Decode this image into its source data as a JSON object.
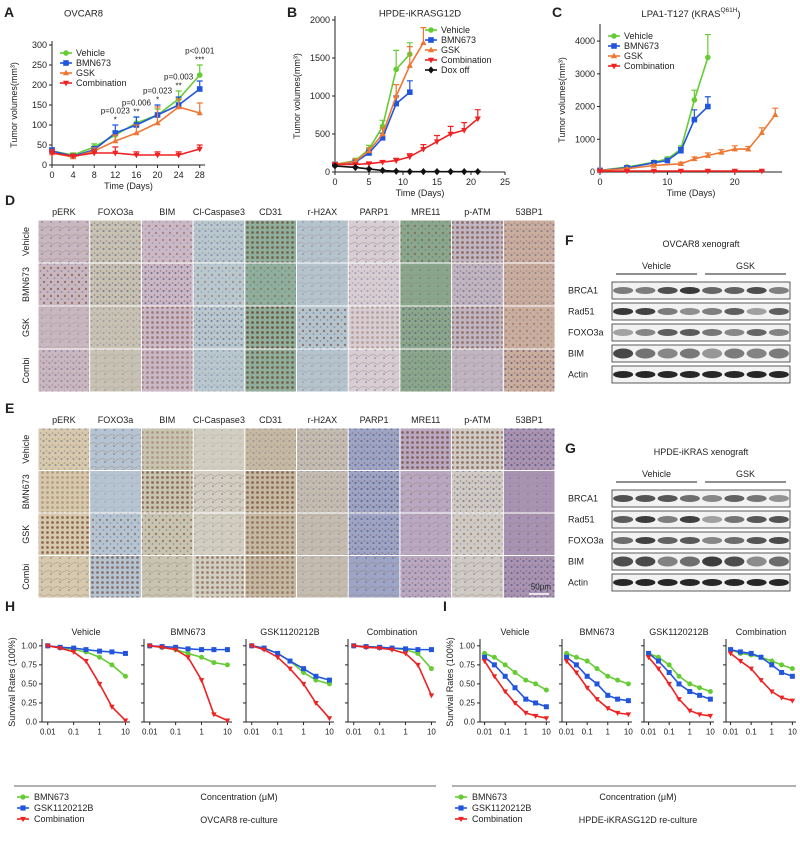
{
  "chart_data": [
    {
      "type": "line",
      "label": "A",
      "title": "OVCAR8",
      "xlabel": "Time (Days)",
      "ylabel": "Tumor volumes(mm³)",
      "x": [
        0,
        4,
        8,
        12,
        16,
        20,
        24,
        28
      ],
      "xlim": [
        0,
        29
      ],
      "xticks": [
        0,
        4,
        8,
        12,
        16,
        20,
        24,
        28
      ],
      "ylim": [
        0,
        300
      ],
      "yticks": [
        0,
        50,
        100,
        150,
        200,
        250,
        300
      ],
      "legend": "upper left",
      "series": [
        {
          "name": "Vehicle",
          "color": "#66cc33",
          "marker": "circle",
          "values": [
            35,
            25,
            45,
            75,
            105,
            125,
            165,
            225
          ],
          "errors": [
            8,
            5,
            8,
            10,
            15,
            15,
            20,
            25
          ]
        },
        {
          "name": "BMN673",
          "color": "#2255dd",
          "marker": "square",
          "values": [
            35,
            22,
            38,
            80,
            100,
            125,
            150,
            190
          ],
          "errors": [
            8,
            5,
            8,
            20,
            20,
            25,
            20,
            20
          ]
        },
        {
          "name": "GSK",
          "color": "#ee7733",
          "marker": "triangle-up",
          "values": [
            30,
            20,
            35,
            60,
            80,
            105,
            145,
            130
          ],
          "errors": [
            8,
            5,
            8,
            15,
            20,
            40,
            20,
            25
          ]
        },
        {
          "name": "Combination",
          "color": "#ee2222",
          "marker": "triangle-down",
          "values": [
            30,
            22,
            30,
            30,
            25,
            25,
            25,
            40
          ],
          "errors": [
            8,
            5,
            8,
            15,
            8,
            8,
            8,
            10
          ]
        }
      ],
      "annotations": [
        {
          "text": "p=0.023",
          "stars": "*"
        },
        {
          "text": "p=0.006",
          "stars": "**"
        },
        {
          "text": "p=0.023",
          "stars": "*"
        },
        {
          "text": "p=0.003",
          "stars": "**"
        },
        {
          "text": "p<0.001",
          "stars": "***"
        }
      ]
    },
    {
      "type": "line",
      "label": "B",
      "title": "HPDE-iKRASG12D",
      "xlabel": "Time (Days)",
      "ylabel": "Tumor volumes(mm³)",
      "xlim": [
        0,
        25
      ],
      "xticks": [
        0,
        5,
        10,
        15,
        20,
        25
      ],
      "ylim": [
        0,
        2000
      ],
      "yticks": [
        0,
        500,
        1000,
        1500,
        2000
      ],
      "legend": "upper right",
      "series": [
        {
          "name": "Vehicle",
          "color": "#66cc33",
          "marker": "circle",
          "x": [
            0,
            3,
            5,
            7,
            9,
            11
          ],
          "values": [
            100,
            150,
            300,
            600,
            1350,
            1550
          ],
          "errors": [
            20,
            30,
            50,
            80,
            250,
            150
          ]
        },
        {
          "name": "BMN673",
          "color": "#2255dd",
          "marker": "square",
          "x": [
            0,
            3,
            5,
            7,
            9,
            11
          ],
          "values": [
            100,
            130,
            250,
            450,
            900,
            1050
          ],
          "errors": [
            20,
            30,
            40,
            60,
            100,
            150
          ]
        },
        {
          "name": "GSK",
          "color": "#ee7733",
          "marker": "triangle-up",
          "x": [
            0,
            3,
            5,
            7,
            9,
            11,
            13
          ],
          "values": [
            100,
            140,
            280,
            500,
            1000,
            1400,
            1700
          ],
          "errors": [
            20,
            30,
            40,
            80,
            150,
            250,
            200
          ]
        },
        {
          "name": "Combination",
          "color": "#ee2222",
          "marker": "triangle-down",
          "x": [
            0,
            3,
            5,
            7,
            9,
            11,
            13,
            15,
            17,
            19,
            21
          ],
          "values": [
            100,
            100,
            110,
            130,
            150,
            200,
            300,
            400,
            500,
            550,
            700
          ],
          "errors": [
            10,
            10,
            15,
            20,
            30,
            40,
            60,
            80,
            100,
            100,
            120
          ]
        },
        {
          "name": "Dox off",
          "color": "#111111",
          "marker": "diamond",
          "x": [
            0,
            3,
            5,
            7,
            9,
            11,
            13,
            15,
            17,
            19,
            21
          ],
          "values": [
            80,
            60,
            40,
            20,
            10,
            5,
            5,
            5,
            5,
            5,
            5
          ],
          "errors": [
            10,
            10,
            10,
            5,
            5,
            5,
            5,
            5,
            5,
            5,
            5
          ]
        }
      ]
    },
    {
      "type": "line",
      "label": "C",
      "title": "LPA1-T127 (KRAS",
      "title_sup": "Q61H",
      "title_end": ")",
      "xlabel": "Time (Days)",
      "ylabel": "Tumor volumes(mm³)",
      "xlim": [
        0,
        27
      ],
      "xticks": [
        0,
        10,
        20
      ],
      "ylim": [
        0,
        4400
      ],
      "yticks": [
        0,
        1000,
        2000,
        3000,
        4000
      ],
      "legend": "upper left",
      "series": [
        {
          "name": "Vehicle",
          "color": "#66cc33",
          "marker": "circle",
          "x": [
            0,
            4,
            8,
            10,
            12,
            14,
            16
          ],
          "values": [
            50,
            150,
            300,
            400,
            700,
            2200,
            3500
          ],
          "errors": [
            20,
            30,
            50,
            60,
            100,
            300,
            700
          ]
        },
        {
          "name": "BMN673",
          "color": "#2255dd",
          "marker": "square",
          "x": [
            0,
            4,
            8,
            10,
            12,
            14,
            16
          ],
          "values": [
            50,
            130,
            280,
            350,
            650,
            1600,
            2000
          ],
          "errors": [
            20,
            30,
            40,
            50,
            100,
            300,
            300
          ]
        },
        {
          "name": "GSK",
          "color": "#ee7733",
          "marker": "triangle-up",
          "x": [
            0,
            4,
            8,
            12,
            14,
            16,
            18,
            20,
            22,
            24,
            26
          ],
          "values": [
            50,
            100,
            200,
            250,
            400,
            500,
            600,
            700,
            700,
            1200,
            1750
          ],
          "errors": [
            10,
            20,
            30,
            50,
            60,
            80,
            80,
            100,
            80,
            150,
            200
          ]
        },
        {
          "name": "Combination",
          "color": "#ee2222",
          "marker": "triangle-down",
          "x": [
            0,
            4,
            8,
            12,
            16,
            20,
            24
          ],
          "values": [
            30,
            30,
            30,
            30,
            30,
            30,
            30
          ],
          "errors": [
            10,
            10,
            10,
            10,
            10,
            10,
            10
          ]
        }
      ]
    },
    {
      "type": "dose_panel",
      "label": "H",
      "ylabel": "Survival Rates (100%)",
      "xlabel": "Concentration (μM)",
      "caption": "OVCAR8 re-culture",
      "log_x": true,
      "x": [
        0.01,
        0.03,
        0.1,
        0.3,
        1,
        3,
        10
      ],
      "xlim": [
        0.006,
        15
      ],
      "xticks": [
        0.01,
        0.1,
        1,
        10
      ],
      "ylim": [
        0,
        1.05
      ],
      "yticks": [
        {
          "value": 0,
          "label": "0.0"
        },
        {
          "value": 0.25,
          "label": "0.25"
        },
        {
          "value": 0.5,
          "label": "0.50"
        },
        {
          "value": 0.75,
          "label": "0.75"
        },
        {
          "value": 1,
          "label": "1.00"
        }
      ],
      "series": [
        {
          "name": "BMN673",
          "color": "#66cc33",
          "marker": "circle"
        },
        {
          "name": "GSK1120212B",
          "color": "#2255dd",
          "marker": "square"
        },
        {
          "name": "Combination",
          "color": "#ee2222",
          "marker": "triangle-down"
        }
      ],
      "subplots": [
        {
          "title": "Vehicle",
          "values": [
            [
              1,
              0.98,
              0.95,
              0.92,
              0.85,
              0.75,
              0.6
            ],
            [
              1,
              0.98,
              0.97,
              0.95,
              0.93,
              0.92,
              0.9
            ],
            [
              1,
              0.97,
              0.92,
              0.8,
              0.5,
              0.2,
              0.02
            ]
          ]
        },
        {
          "title": "BMN673",
          "values": [
            [
              1,
              0.98,
              0.95,
              0.9,
              0.85,
              0.78,
              0.75
            ],
            [
              1,
              0.99,
              0.98,
              0.96,
              0.95,
              0.95,
              0.95
            ],
            [
              1,
              0.98,
              0.95,
              0.85,
              0.55,
              0.1,
              0.02
            ]
          ]
        },
        {
          "title": "GSK1120212B",
          "values": [
            [
              1,
              0.97,
              0.9,
              0.8,
              0.65,
              0.55,
              0.5
            ],
            [
              1,
              0.97,
              0.9,
              0.8,
              0.7,
              0.6,
              0.55
            ],
            [
              1,
              0.95,
              0.85,
              0.7,
              0.5,
              0.25,
              0.05
            ]
          ]
        },
        {
          "title": "Combination",
          "values": [
            [
              1,
              0.99,
              0.98,
              0.97,
              0.95,
              0.9,
              0.7
            ],
            [
              1,
              0.99,
              0.98,
              0.97,
              0.96,
              0.95,
              0.95
            ],
            [
              1,
              0.98,
              0.97,
              0.95,
              0.9,
              0.75,
              0.35
            ]
          ]
        }
      ]
    },
    {
      "type": "dose_panel",
      "label": "I",
      "ylabel": "Survival Rates (100%)",
      "xlabel": "Concentration (μM)",
      "caption": "HPDE-iKRASG12D re-culture",
      "log_x": true,
      "x": [
        0.01,
        0.03,
        0.1,
        0.3,
        1,
        3,
        10
      ],
      "xlim": [
        0.006,
        15
      ],
      "xticks": [
        0.01,
        0.1,
        1,
        10
      ],
      "ylim": [
        0,
        1.05
      ],
      "yticks": [
        {
          "value": 0,
          "label": "0.0"
        },
        {
          "value": 0.25,
          "label": "0.25"
        },
        {
          "value": 0.5,
          "label": "0.50"
        },
        {
          "value": 0.75,
          "label": "0.75"
        },
        {
          "value": 1,
          "label": "1.00"
        }
      ],
      "series": [
        {
          "name": "BMN673",
          "color": "#66cc33",
          "marker": "circle"
        },
        {
          "name": "GSK1120212B",
          "color": "#2255dd",
          "marker": "square"
        },
        {
          "name": "Combination",
          "color": "#ee2222",
          "marker": "triangle-down"
        }
      ],
      "subplots": [
        {
          "title": "Vehicle",
          "values": [
            [
              0.9,
              0.85,
              0.75,
              0.65,
              0.55,
              0.5,
              0.42
            ],
            [
              0.85,
              0.75,
              0.6,
              0.45,
              0.3,
              0.25,
              0.2
            ],
            [
              0.8,
              0.6,
              0.4,
              0.25,
              0.12,
              0.08,
              0.05
            ]
          ]
        },
        {
          "title": "BMN673",
          "values": [
            [
              0.9,
              0.85,
              0.8,
              0.7,
              0.6,
              0.55,
              0.5
            ],
            [
              0.85,
              0.75,
              0.6,
              0.5,
              0.35,
              0.3,
              0.28
            ],
            [
              0.8,
              0.65,
              0.45,
              0.3,
              0.18,
              0.12,
              0.1
            ]
          ]
        },
        {
          "title": "GSK1120212B",
          "values": [
            [
              0.9,
              0.85,
              0.75,
              0.6,
              0.5,
              0.45,
              0.4
            ],
            [
              0.9,
              0.8,
              0.65,
              0.5,
              0.4,
              0.35,
              0.3
            ],
            [
              0.85,
              0.7,
              0.5,
              0.3,
              0.15,
              0.1,
              0.08
            ]
          ]
        },
        {
          "title": "Combination",
          "values": [
            [
              0.95,
              0.9,
              0.88,
              0.85,
              0.8,
              0.75,
              0.7
            ],
            [
              0.95,
              0.92,
              0.9,
              0.85,
              0.75,
              0.65,
              0.6
            ],
            [
              0.9,
              0.8,
              0.7,
              0.55,
              0.4,
              0.32,
              0.28
            ]
          ]
        }
      ]
    }
  ],
  "ihc_d": {
    "label": "D",
    "columns": [
      "pERK",
      "FOXO3a",
      "BIM",
      "Cl-Caspase3",
      "CD31",
      "r-H2AX",
      "PARP1",
      "MRE11",
      "p-ATM",
      "53BP1"
    ],
    "rows": [
      "Vehicle",
      "BMN673",
      "GSK",
      "Combi"
    ]
  },
  "ihc_e": {
    "label": "E",
    "columns": [
      "pERK",
      "FOXO3a",
      "BIM",
      "Cl-Caspase3",
      "CD31",
      "r-H2AX",
      "PARP1",
      "MRE11",
      "p-ATM",
      "53BP1"
    ],
    "rows": [
      "Vehicle",
      "BMN673",
      "GSK",
      "Combi"
    ],
    "scale_bar": "50μm"
  },
  "blot_f": {
    "label": "F",
    "title": "OVCAR8 xenograft",
    "groups": [
      "Vehicle",
      "GSK"
    ],
    "bands": [
      "BRCA1",
      "Rad51",
      "FOXO3a",
      "BIM",
      "Actin"
    ]
  },
  "blot_g": {
    "label": "G",
    "title": "HPDE-iKRAS xenograft",
    "groups": [
      "Vehicle",
      "GSK"
    ],
    "bands": [
      "BRCA1",
      "Rad51",
      "FOXO3a",
      "BIM",
      "Actin"
    ]
  }
}
